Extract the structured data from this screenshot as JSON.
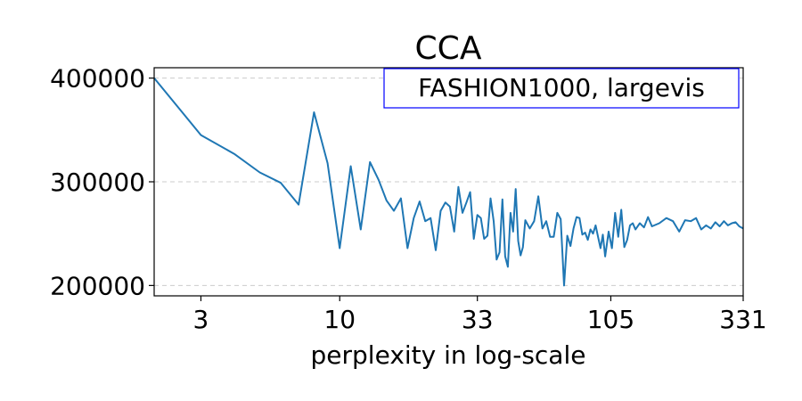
{
  "chart_data": {
    "type": "line",
    "title": "CCA",
    "xlabel": "perplexity in log-scale",
    "ylabel": "",
    "x_scale": "log",
    "xlim": [
      2,
      331
    ],
    "ylim": [
      190000,
      410000
    ],
    "x_ticks": [
      3,
      10,
      33,
      105,
      331
    ],
    "x_tick_labels": [
      "3",
      "10",
      "33",
      "105",
      "331"
    ],
    "y_ticks": [
      200000,
      300000,
      400000
    ],
    "y_tick_labels": [
      "200000",
      "300000",
      "400000"
    ],
    "grid": "horizontal dashed",
    "annotation_box": {
      "text": "FASHION1000, largevis",
      "placement": "top-right",
      "border_color": "#0000ff"
    },
    "series": [
      {
        "color": "#1f77b4",
        "x": [
          2,
          3,
          4,
          5,
          6,
          7,
          8,
          9,
          10,
          11,
          12,
          13,
          14,
          15,
          16,
          17,
          18,
          19,
          20,
          21,
          22,
          23,
          24,
          25,
          26,
          27,
          28,
          29,
          30,
          31,
          32,
          33,
          34,
          35,
          36,
          37,
          38,
          39,
          40,
          41,
          42,
          43,
          44,
          45,
          46,
          47,
          48,
          49,
          50,
          52,
          54,
          56,
          58,
          60,
          62,
          64,
          66,
          68,
          70,
          72,
          74,
          76,
          78,
          80,
          82,
          84,
          86,
          88,
          90,
          92,
          94,
          96,
          98,
          100,
          103,
          106,
          109,
          112,
          115,
          118,
          121,
          124,
          127,
          130,
          135,
          140,
          145,
          150,
          160,
          170,
          180,
          190,
          200,
          210,
          220,
          230,
          240,
          250,
          260,
          270,
          280,
          290,
          300,
          310,
          320,
          331
        ],
        "y": [
          400000,
          345000,
          327000,
          309000,
          299000,
          278000,
          367000,
          318000,
          236000,
          315000,
          254000,
          319000,
          302000,
          282000,
          272000,
          284000,
          236000,
          265000,
          281000,
          262000,
          265000,
          234000,
          272000,
          280000,
          276000,
          252000,
          295000,
          270000,
          280000,
          290000,
          245000,
          268000,
          265000,
          245000,
          248000,
          284000,
          262000,
          225000,
          232000,
          283000,
          228000,
          218000,
          270000,
          252000,
          293000,
          243000,
          229000,
          237000,
          263000,
          255000,
          262000,
          286000,
          255000,
          262000,
          247000,
          247000,
          270000,
          264000,
          200000,
          248000,
          238000,
          255000,
          266000,
          265000,
          249000,
          251000,
          244000,
          254000,
          250000,
          258000,
          247000,
          236000,
          249000,
          228000,
          252000,
          236000,
          270000,
          247000,
          273000,
          237000,
          244000,
          258000,
          260000,
          254000,
          260000,
          256000,
          266000,
          257000,
          260000,
          265000,
          262000,
          252000,
          263000,
          262000,
          265000,
          254000,
          258000,
          255000,
          261000,
          257000,
          262000,
          258000,
          260000,
          261000,
          257000,
          255000
        ]
      }
    ]
  }
}
